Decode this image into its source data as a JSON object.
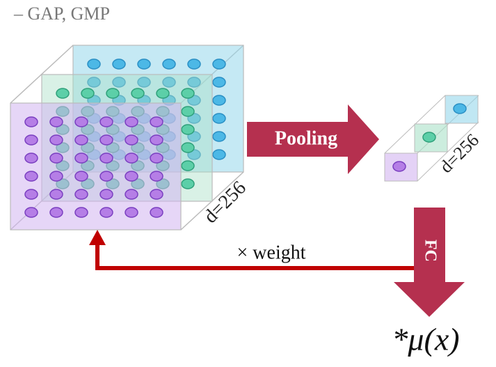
{
  "header": {
    "title": "– GAP, GMP"
  },
  "cube": {
    "depth_label": "d=256"
  },
  "pooling": {
    "label": "Pooling"
  },
  "pooled": {
    "depth_label": "d=256"
  },
  "fc": {
    "label": "FC"
  },
  "weight": {
    "label": "× weight"
  },
  "output": {
    "label": "*μ(x)"
  }
}
